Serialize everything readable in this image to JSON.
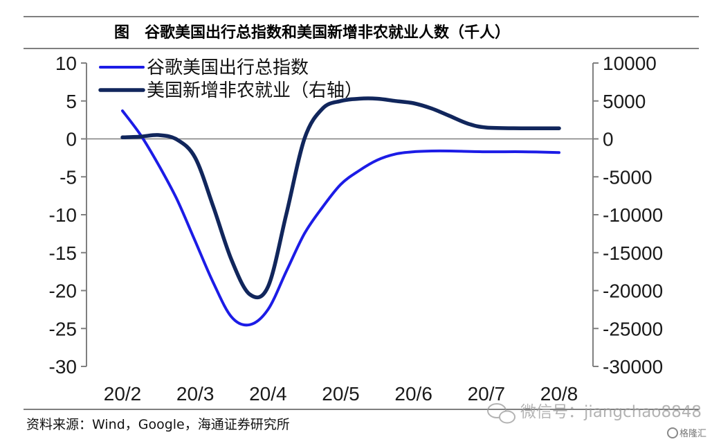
{
  "title": "图　谷歌美国出行总指数和美国新增非农就业人数（千人）",
  "source": "资料来源：Wind，Google，海通证券研究所",
  "watermark": "微信号：jiangchao8848",
  "badge": "格隆汇",
  "colors": {
    "google": "#1c1ce6",
    "payroll": "#11265c",
    "axis": "#7f7f7f"
  },
  "chart_data": {
    "type": "line",
    "categories": [
      "20/2",
      "20/3",
      "20/4",
      "20/5",
      "20/6",
      "20/7",
      "20/8"
    ],
    "left_axis": {
      "min": -30,
      "max": 10,
      "ticks": [
        "10",
        "5",
        "0",
        "-5",
        "-10",
        "-15",
        "-20",
        "-25",
        "-30"
      ]
    },
    "right_axis": {
      "min": -30000,
      "max": 10000,
      "ticks": [
        "10000",
        "5000",
        "0",
        "-5000",
        "-10000",
        "-15000",
        "-20000",
        "-25000",
        "-30000"
      ]
    },
    "series": [
      {
        "name": "谷歌美国出行总指数",
        "axis": "left",
        "x": [
          0,
          0.25,
          0.5,
          0.75,
          1.0,
          1.25,
          1.5,
          1.75,
          2.0,
          2.25,
          2.5,
          2.75,
          3.0,
          3.25,
          3.5,
          3.75,
          4.0,
          4.25,
          4.5,
          5.0,
          5.5,
          6.0
        ],
        "values": [
          3.7,
          0.5,
          -3.5,
          -8.0,
          -13.5,
          -19.0,
          -23.5,
          -24.5,
          -22.5,
          -17.5,
          -12.5,
          -9.0,
          -6.0,
          -4.2,
          -2.8,
          -2.0,
          -1.7,
          -1.6,
          -1.6,
          -1.7,
          -1.7,
          -1.8
        ]
      },
      {
        "name": "美国新增非农就业（右轴）",
        "axis": "right",
        "x": [
          0,
          0.25,
          0.5,
          0.75,
          1.0,
          1.25,
          1.5,
          1.75,
          2.0,
          2.25,
          2.5,
          2.75,
          3.0,
          3.25,
          3.5,
          3.75,
          4.0,
          4.25,
          4.5,
          4.75,
          5.0,
          5.5,
          6.0
        ],
        "values": [
          200,
          300,
          500,
          -100,
          -2500,
          -9000,
          -16000,
          -20500,
          -19500,
          -10000,
          0,
          4000,
          5000,
          5300,
          5300,
          5000,
          4700,
          4000,
          3000,
          2000,
          1500,
          1400,
          1400
        ]
      }
    ]
  }
}
